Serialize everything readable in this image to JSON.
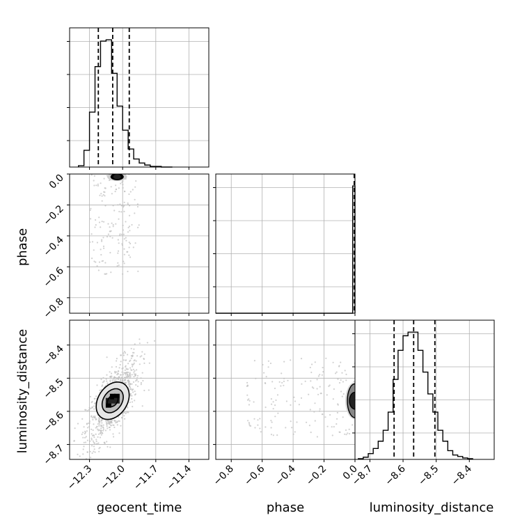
{
  "chart_data": {
    "type": "corner",
    "parameters": [
      "geocent_time",
      "phase",
      "luminosity_distance"
    ],
    "axis_labels": {
      "geocent_time": "geocent_time",
      "phase": "phase",
      "luminosity_distance": "luminosity_distance"
    },
    "ranges": {
      "geocent_time": [
        -12.48,
        -11.22
      ],
      "phase": [
        -0.9,
        0.0
      ],
      "luminosity_distance": [
        -8.745,
        -8.325
      ]
    },
    "ticks": {
      "geocent_time": [
        {
          "v": -12.3,
          "label": "−12.3"
        },
        {
          "v": -12.0,
          "label": "−12.0"
        },
        {
          "v": -11.7,
          "label": "−11.7"
        },
        {
          "v": -11.4,
          "label": "−11.4"
        }
      ],
      "phase": [
        {
          "v": -0.8,
          "label": "−0.8"
        },
        {
          "v": -0.6,
          "label": "−0.6"
        },
        {
          "v": -0.4,
          "label": "−0.4"
        },
        {
          "v": -0.2,
          "label": "−0.2"
        },
        {
          "v": 0.0,
          "label": "0.0"
        }
      ],
      "luminosity_distance": [
        {
          "v": -8.7,
          "label": "−8.7"
        },
        {
          "v": -8.6,
          "label": "−8.6"
        },
        {
          "v": -8.5,
          "label": "−8.5"
        },
        {
          "v": -8.4,
          "label": "−8.4"
        }
      ]
    },
    "histograms": {
      "geocent_time": {
        "bin_edges": [
          -12.4,
          -12.35,
          -12.3,
          -12.25,
          -12.2,
          -12.15,
          -12.1,
          -12.05,
          -12.0,
          -11.95,
          -11.9,
          -11.85,
          -11.8,
          -11.75,
          -11.7,
          -11.65,
          -11.6,
          -11.55
        ],
        "counts": [
          2,
          25,
          82,
          150,
          188,
          190,
          140,
          91,
          55,
          27,
          12,
          6,
          3,
          1,
          1,
          0,
          0
        ],
        "quantiles": [
          -12.22,
          -12.09,
          -11.94
        ]
      },
      "phase": {
        "bin_edges": [
          -0.9,
          -0.015,
          0.0
        ],
        "counts": [
          0,
          180
        ],
        "quantiles": [
          -0.002,
          -0.0005,
          0.0
        ]
      },
      "luminosity_distance": {
        "bin_edges": [
          -8.735,
          -8.72,
          -8.705,
          -8.69,
          -8.675,
          -8.66,
          -8.645,
          -8.63,
          -8.615,
          -8.6,
          -8.585,
          -8.57,
          -8.555,
          -8.54,
          -8.525,
          -8.51,
          -8.495,
          -8.48,
          -8.465,
          -8.45,
          -8.435,
          -8.42,
          -8.405,
          -8.39
        ],
        "counts": [
          1,
          3,
          8,
          15,
          25,
          40,
          65,
          110,
          150,
          170,
          175,
          175,
          150,
          120,
          90,
          65,
          40,
          25,
          12,
          6,
          4,
          2,
          1
        ],
        "quantiles": [
          -8.627,
          -8.568,
          -8.504
        ]
      }
    },
    "pairs": [
      {
        "x": "geocent_time",
        "y": "phase",
        "center": [
          -12.05,
          -0.015
        ],
        "contour_widths": [
          0.07,
          0.1
        ],
        "scatter_extent": {
          "x": [
            -12.3,
            -11.85
          ],
          "y": [
            -0.65,
            0.0
          ]
        }
      },
      {
        "x": "geocent_time",
        "y": "luminosity_distance",
        "center": [
          -12.09,
          -8.568
        ],
        "contour_levels": [
          {
            "sx": 0.045,
            "sy": 0.025
          },
          {
            "sx": 0.09,
            "sy": 0.05
          },
          {
            "sx": 0.14,
            "sy": 0.078
          }
        ],
        "correlation": 0.7,
        "scatter_extent": {
          "x": [
            -12.35,
            -11.65
          ],
          "y": [
            -8.72,
            -8.4
          ]
        }
      },
      {
        "x": "phase",
        "y": "luminosity_distance",
        "center": [
          -0.005,
          -8.568
        ],
        "contour_levels": [
          {
            "sx": 0.008,
            "sy": 0.03
          },
          {
            "sx": 0.014,
            "sy": 0.06
          }
        ],
        "scatter_extent": {
          "x": [
            -0.7,
            0.0
          ],
          "y": [
            -8.68,
            -8.44
          ]
        }
      }
    ]
  }
}
